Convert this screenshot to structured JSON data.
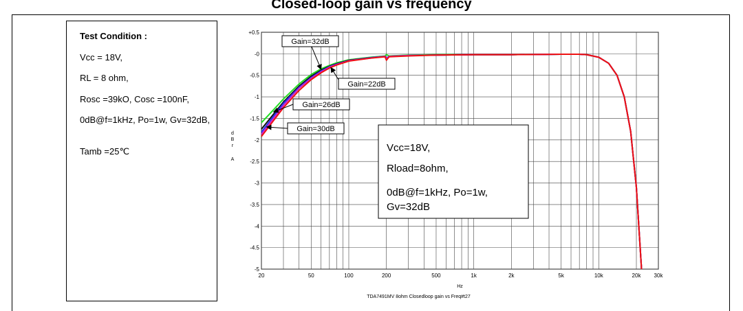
{
  "heading": "Closed-loop gain vs frequency",
  "test_condition": {
    "title": "Test Condition :",
    "lines": [
      "Vcc = 18V,",
      "RL = 8 ohm,",
      "Rosc =39kΟ, Cosc =100nF,",
      "0dB@f=1kHz, Po=1w, Gv=32dB,",
      "Tamb =25℃"
    ]
  },
  "colors": {
    "green": "#22dd22",
    "black": "#111111",
    "blue": "#2233ee",
    "magenta": "#cc22cc",
    "red": "#ee1111"
  },
  "chart_data": {
    "type": "line",
    "xscale": "log",
    "xlim": [
      20,
      30000
    ],
    "ylim": [
      -5,
      0.5
    ],
    "grid": true,
    "xlabel": "Hz",
    "ylabel": "dBr A",
    "caption": "TDA7491MV 8ohm Closedloop gain vs Freq#t27",
    "x_ticks": [
      20,
      50,
      100,
      200,
      500,
      1000,
      2000,
      5000,
      10000,
      20000,
      30000
    ],
    "x_tick_labels": [
      "20",
      "50",
      "100",
      "200",
      "500",
      "1k",
      "2k",
      "5k",
      "10k",
      "20k",
      "30k"
    ],
    "y_ticks": [
      0.5,
      0,
      -0.5,
      -1,
      -1.5,
      -2,
      -2.5,
      -3,
      -3.5,
      -4,
      -4.5,
      -5
    ],
    "y_tick_labels": [
      "+0.5",
      "-0",
      "-0.5",
      "-1",
      "-1.5",
      "-2",
      "-2.5",
      "-3",
      "-3.5",
      "-4",
      "-4.5",
      "-5"
    ],
    "series": [
      {
        "name": "Gain=32dB",
        "color_key": "green",
        "x": [
          20,
          25,
          30,
          40,
          50,
          60,
          70,
          80,
          100,
          150,
          195,
          200,
          210,
          300,
          500,
          1000,
          2000,
          5000,
          7000,
          8000,
          10000,
          12000,
          14000,
          16000,
          18000,
          20000,
          22000
        ],
        "y": [
          -1.6,
          -1.3,
          -1.05,
          -0.7,
          -0.48,
          -0.35,
          -0.27,
          -0.21,
          -0.14,
          -0.08,
          -0.05,
          -0.02,
          -0.05,
          -0.03,
          -0.02,
          -0.02,
          -0.02,
          -0.01,
          -0.01,
          -0.02,
          -0.08,
          -0.22,
          -0.5,
          -1.0,
          -1.8,
          -3.1,
          -5.0
        ]
      },
      {
        "name": "Gain=30dB",
        "color_key": "blue",
        "x": [
          20,
          25,
          30,
          40,
          50,
          60,
          70,
          80,
          100,
          150,
          195,
          200,
          210,
          300,
          500,
          1000,
          2000,
          5000,
          7000,
          8000,
          10000,
          12000,
          14000,
          16000,
          18000,
          20000,
          22000
        ],
        "y": [
          -1.82,
          -1.45,
          -1.15,
          -0.78,
          -0.55,
          -0.4,
          -0.3,
          -0.24,
          -0.16,
          -0.09,
          -0.06,
          -0.1,
          -0.06,
          -0.04,
          -0.03,
          -0.02,
          -0.02,
          -0.01,
          -0.01,
          -0.02,
          -0.08,
          -0.22,
          -0.5,
          -1.0,
          -1.8,
          -3.1,
          -5.0
        ]
      },
      {
        "name": "Gain=26dB",
        "color_key": "black",
        "x": [
          20,
          25,
          30,
          40,
          50,
          60,
          70,
          80,
          100,
          150,
          195,
          200,
          210,
          300,
          500,
          1000,
          2000,
          5000,
          7000,
          8000,
          10000,
          12000,
          14000,
          16000,
          18000,
          20000,
          22000
        ],
        "y": [
          -1.75,
          -1.4,
          -1.12,
          -0.75,
          -0.52,
          -0.38,
          -0.29,
          -0.23,
          -0.15,
          -0.09,
          -0.06,
          -0.12,
          -0.06,
          -0.04,
          -0.03,
          -0.02,
          -0.02,
          -0.01,
          -0.01,
          -0.02,
          -0.08,
          -0.22,
          -0.5,
          -1.0,
          -1.8,
          -3.1,
          -5.0
        ]
      },
      {
        "name": "Gain=22dB",
        "color_key": "red",
        "x": [
          20,
          25,
          30,
          40,
          50,
          60,
          70,
          80,
          100,
          150,
          195,
          200,
          210,
          300,
          500,
          1000,
          2000,
          5000,
          7000,
          8000,
          10000,
          12000,
          14000,
          16000,
          18000,
          20000,
          22000
        ],
        "y": [
          -1.92,
          -1.55,
          -1.25,
          -0.85,
          -0.6,
          -0.44,
          -0.33,
          -0.26,
          -0.17,
          -0.1,
          -0.07,
          -0.15,
          -0.07,
          -0.05,
          -0.03,
          -0.02,
          -0.02,
          -0.01,
          -0.01,
          -0.02,
          -0.08,
          -0.22,
          -0.5,
          -1.0,
          -1.8,
          -3.1,
          -5.0
        ]
      },
      {
        "name": "",
        "color_key": "magenta",
        "x": [
          20,
          25,
          30,
          40,
          50,
          60,
          70,
          80,
          100,
          150,
          195,
          200,
          210,
          300,
          500,
          1000,
          2000,
          5000,
          7000,
          8000,
          10000,
          12000,
          14000,
          16000,
          18000,
          20000,
          22000
        ],
        "y": [
          -1.87,
          -1.5,
          -1.2,
          -0.8,
          -0.57,
          -0.42,
          -0.31,
          -0.25,
          -0.16,
          -0.1,
          -0.06,
          -0.12,
          -0.06,
          -0.04,
          -0.03,
          -0.02,
          -0.02,
          -0.01,
          -0.01,
          -0.02,
          -0.08,
          -0.22,
          -0.5,
          -1.0,
          -1.8,
          -3.1,
          -5.0
        ]
      }
    ],
    "callouts": [
      {
        "label": "Gain=32dB",
        "target": [
          60,
          -0.36
        ]
      },
      {
        "label": "Gain=22dB",
        "target": [
          72,
          -0.32
        ]
      },
      {
        "label": "Gain=26dB",
        "target": [
          25,
          -1.35
        ]
      },
      {
        "label": "Gain=30dB",
        "target": [
          22,
          -1.7
        ]
      }
    ],
    "annotation": [
      "Vcc=18V,",
      "Rload=8ohm,",
      "0dB@f=1kHz, Po=1w,",
      "Gv=32dB"
    ]
  }
}
